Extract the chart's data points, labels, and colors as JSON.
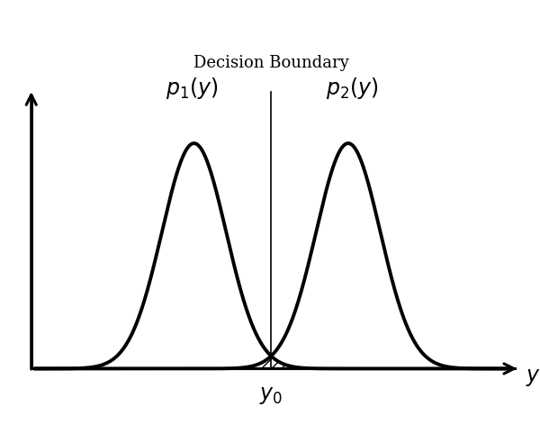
{
  "mu1": -1.8,
  "mu2": 1.8,
  "sigma": 0.75,
  "x_min": -5.5,
  "x_max": 5.5,
  "decision_boundary": 0.0,
  "y0_label": "$y_0$",
  "y_label": "$y$",
  "title": "Decision Boundary",
  "label1": "$p_1(y)$",
  "label2": "$p_2(y)$",
  "curve_color": "#000000",
  "line_width": 2.8,
  "background_color": "#ffffff",
  "title_fontsize": 13,
  "label_fontsize": 17,
  "axis_label_fontsize": 17
}
